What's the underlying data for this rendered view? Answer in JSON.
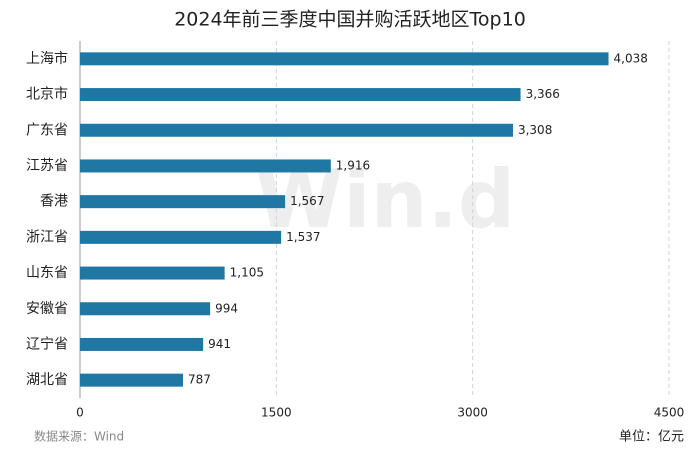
{
  "chart_data": {
    "type": "bar",
    "orientation": "horizontal",
    "title": "2024年前三季度中国并购活跃地区Top10",
    "categories": [
      "上海市",
      "北京市",
      "广东省",
      "江苏省",
      "香港",
      "浙江省",
      "山东省",
      "安徽省",
      "辽宁省",
      "湖北省"
    ],
    "values": [
      4038,
      3366,
      3308,
      1916,
      1567,
      1537,
      1105,
      994,
      941,
      787
    ],
    "value_labels": [
      "4,038",
      "3,366",
      "3,308",
      "1,916",
      "1,567",
      "1,537",
      "1,105",
      "994",
      "941",
      "787"
    ],
    "color": "#1f77a4",
    "xlim": [
      0,
      4500
    ],
    "xticks": [
      0,
      1500,
      3000,
      4500
    ],
    "grid": true,
    "source": "数据来源：Wind",
    "unit": "单位：亿元",
    "watermark": "Win.d"
  }
}
